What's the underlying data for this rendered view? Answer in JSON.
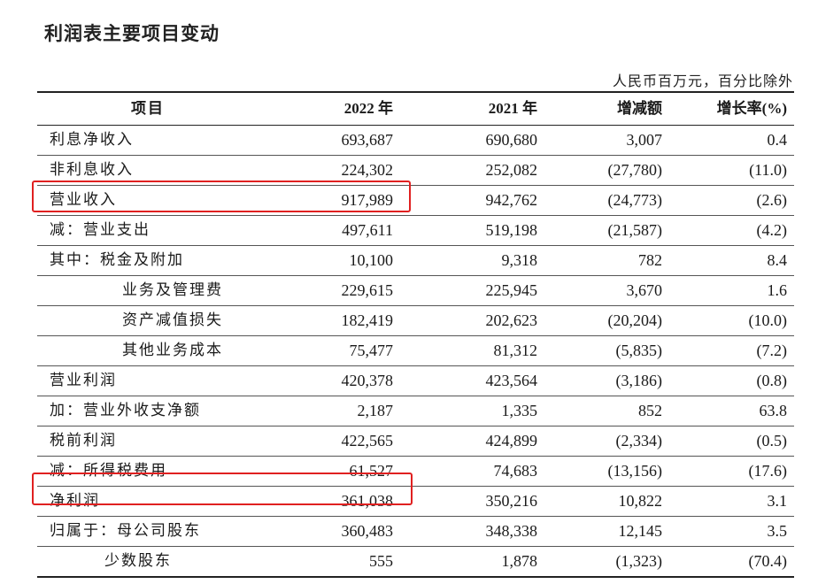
{
  "title": "利润表主要项目变动",
  "unit_note": "人民币百万元，百分比除外",
  "columns": [
    "项目",
    "2022 年",
    "2021 年",
    "增减额",
    "增长率(%)"
  ],
  "rows": [
    {
      "item": "利息净收入",
      "y2022": "693,687",
      "y2021": "690,680",
      "change": "3,007",
      "rate": "0.4"
    },
    {
      "item": "非利息收入",
      "y2022": "224,302",
      "y2021": "252,082",
      "change": "(27,780)",
      "rate": "(11.0)"
    },
    {
      "item": "营业收入",
      "y2022": "917,989",
      "y2021": "942,762",
      "change": "(24,773)",
      "rate": "(2.6)"
    },
    {
      "item": "减：营业支出",
      "y2022": "497,611",
      "y2021": "519,198",
      "change": "(21,587)",
      "rate": "(4.2)"
    },
    {
      "item": "其中：税金及附加",
      "y2022": "10,100",
      "y2021": "9,318",
      "change": "782",
      "rate": "8.4"
    },
    {
      "item": "业务及管理费",
      "y2022": "229,615",
      "y2021": "225,945",
      "change": "3,670",
      "rate": "1.6"
    },
    {
      "item": "资产减值损失",
      "y2022": "182,419",
      "y2021": "202,623",
      "change": "(20,204)",
      "rate": "(10.0)"
    },
    {
      "item": "其他业务成本",
      "y2022": "75,477",
      "y2021": "81,312",
      "change": "(5,835)",
      "rate": "(7.2)"
    },
    {
      "item": "营业利润",
      "y2022": "420,378",
      "y2021": "423,564",
      "change": "(3,186)",
      "rate": "(0.8)"
    },
    {
      "item": "加：营业外收支净额",
      "y2022": "2,187",
      "y2021": "1,335",
      "change": "852",
      "rate": "63.8"
    },
    {
      "item": "税前利润",
      "y2022": "422,565",
      "y2021": "424,899",
      "change": "(2,334)",
      "rate": "(0.5)"
    },
    {
      "item": "减：所得税费用",
      "y2022": "61,527",
      "y2021": "74,683",
      "change": "(13,156)",
      "rate": "(17.6)"
    },
    {
      "item": "净利润",
      "y2022": "361,038",
      "y2021": "350,216",
      "change": "10,822",
      "rate": "3.1"
    },
    {
      "item": "归属于：母公司股东",
      "y2022": "360,483",
      "y2021": "348,338",
      "change": "12,145",
      "rate": "3.5"
    },
    {
      "item": "少数股东",
      "y2022": "555",
      "y2021": "1,878",
      "change": "(1,323)",
      "rate": "(70.4)"
    }
  ],
  "highlight_color": "#e02020"
}
